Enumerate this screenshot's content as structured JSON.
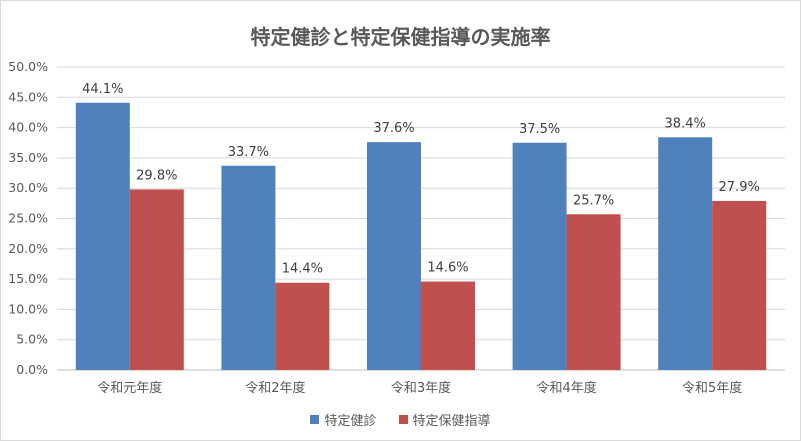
{
  "colors": {
    "series_1": "#4f81bd",
    "series_2": "#c0504d",
    "grid": "#d9d9d9",
    "axis": "#bfbfbf"
  },
  "chart_data": {
    "type": "bar",
    "title": "特定健診と特定保健指導の実施率",
    "categories": [
      "令和元年度",
      "令和2年度",
      "令和3年度",
      "令和4年度",
      "令和5年度"
    ],
    "series": [
      {
        "name": "特定健診",
        "values": [
          44.1,
          33.7,
          37.6,
          37.5,
          38.4
        ],
        "labels": [
          "44.1%",
          "33.7%",
          "37.6%",
          "37.5%",
          "38.4%"
        ]
      },
      {
        "name": "特定保健指導",
        "values": [
          29.8,
          14.4,
          14.6,
          25.7,
          27.9
        ],
        "labels": [
          "29.8%",
          "14.4%",
          "14.6%",
          "25.7%",
          "27.9%"
        ]
      }
    ],
    "ylim": [
      0,
      50
    ],
    "yticks": [
      0,
      5,
      10,
      15,
      20,
      25,
      30,
      35,
      40,
      45,
      50
    ],
    "ytick_labels": [
      "0.0%",
      "5.0%",
      "10.0%",
      "15.0%",
      "20.0%",
      "25.0%",
      "30.0%",
      "35.0%",
      "40.0%",
      "45.0%",
      "50.0%"
    ],
    "grid": true,
    "legend_position": "bottom"
  }
}
